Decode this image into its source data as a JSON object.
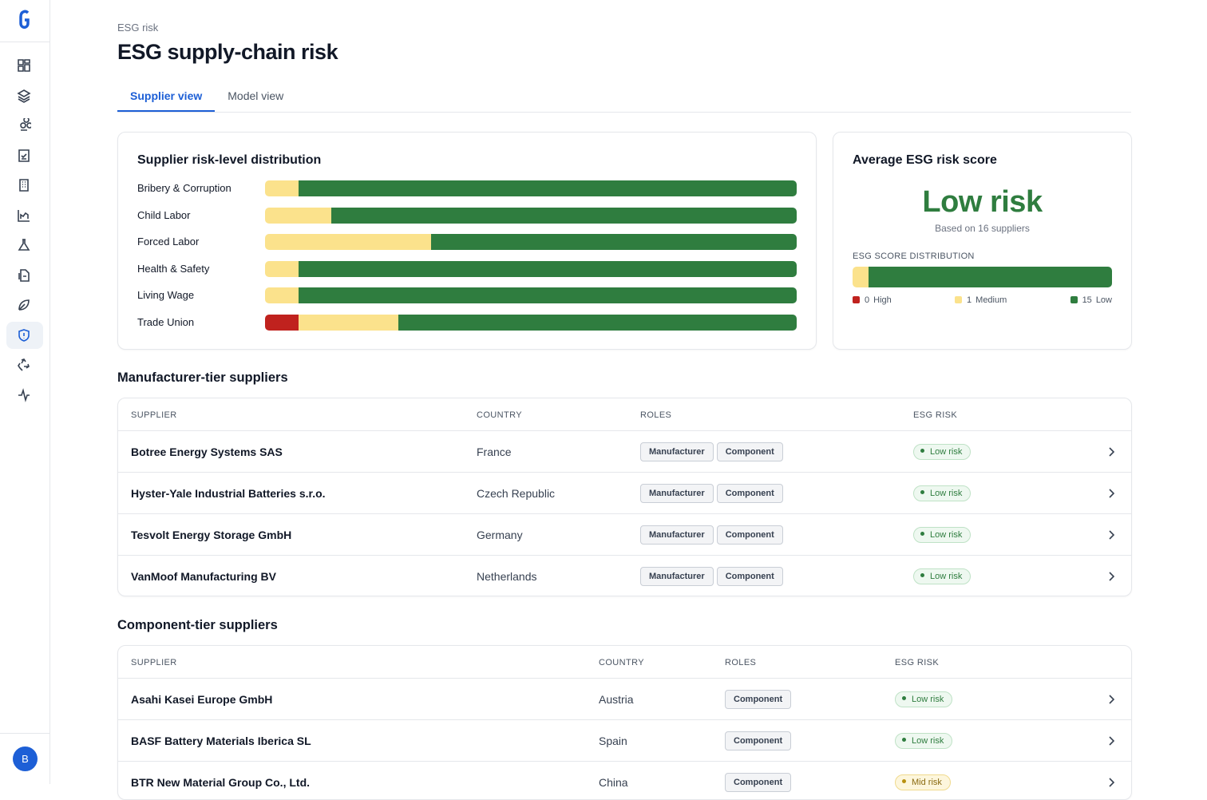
{
  "sidebar": {
    "avatar": "B"
  },
  "breadcrumb": "ESG risk",
  "title": "ESG supply-chain risk",
  "tabs": [
    "Supplier view",
    "Model view"
  ],
  "distribution": {
    "title": "Supplier risk-level distribution",
    "categories": [
      "Bribery & Corruption",
      "Child Labor",
      "Forced Labor",
      "Health & Safety",
      "Living Wage",
      "Trade Union"
    ],
    "series": [
      {
        "color": "#c0221e",
        "values": [
          0,
          0,
          0,
          0,
          0,
          1
        ]
      },
      {
        "color": "#fbe28c",
        "values": [
          1,
          2,
          5,
          1,
          1,
          3
        ]
      },
      {
        "color": "#2f7d3f",
        "values": [
          15,
          14,
          11,
          15,
          15,
          12
        ]
      }
    ]
  },
  "average": {
    "title": "Average ESG risk score",
    "value": "Low risk",
    "note": "Based on 16 suppliers",
    "distribution_label": "ESG SCORE DISTRIBUTION",
    "items": [
      {
        "count": 0,
        "label": "High",
        "color": "#c0221e"
      },
      {
        "count": 1,
        "label": "Medium",
        "color": "#fbe28c"
      },
      {
        "count": 15,
        "label": "Low",
        "color": "#2f7d3f"
      }
    ]
  },
  "tables": [
    {
      "title": "Manufacturer-tier suppliers",
      "columns": [
        "SUPPLIER",
        "COUNTRY",
        "ROLES",
        "ESG RISK"
      ],
      "rows": [
        {
          "supplier": "Botree Energy Systems SAS",
          "country": "France",
          "roles": [
            "Manufacturer",
            "Component"
          ],
          "risk": "Low risk"
        },
        {
          "supplier": "Hyster-Yale Industrial Batteries s.r.o.",
          "country": "Czech Republic",
          "roles": [
            "Manufacturer",
            "Component"
          ],
          "risk": "Low risk"
        },
        {
          "supplier": "Tesvolt Energy Storage GmbH",
          "country": "Germany",
          "roles": [
            "Manufacturer",
            "Component"
          ],
          "risk": "Low risk"
        },
        {
          "supplier": "VanMoof Manufacturing BV",
          "country": "Netherlands",
          "roles": [
            "Manufacturer",
            "Component"
          ],
          "risk": "Low risk"
        }
      ]
    },
    {
      "title": "Component-tier suppliers",
      "columns": [
        "SUPPLIER",
        "COUNTRY",
        "ROLES",
        "ESG RISK"
      ],
      "rows": [
        {
          "supplier": "Asahi Kasei Europe GmbH",
          "country": "Austria",
          "roles": [
            "Component"
          ],
          "risk": "Low risk"
        },
        {
          "supplier": "BASF Battery Materials Iberica SL",
          "country": "Spain",
          "roles": [
            "Component"
          ],
          "risk": "Low risk"
        },
        {
          "supplier": "BTR New Material Group Co., Ltd.",
          "country": "China",
          "roles": [
            "Component"
          ],
          "risk": "Mid risk"
        }
      ]
    }
  ]
}
